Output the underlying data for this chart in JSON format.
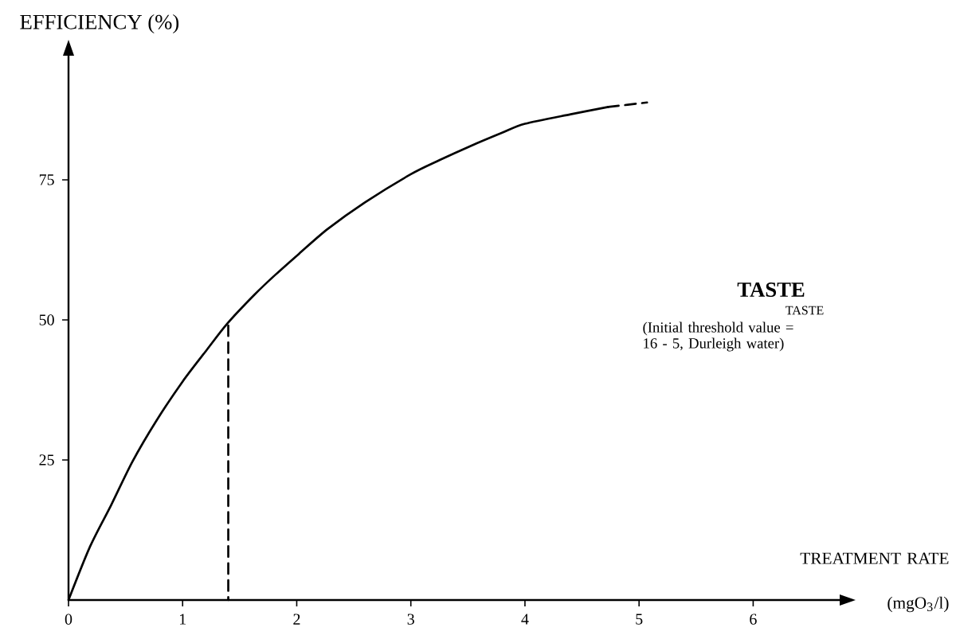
{
  "chart_data": {
    "type": "line",
    "xlabel": "TREATMENT RATE (mgO$_{3}$/l)",
    "ylabel": "EFFICIENCY (%)",
    "series": [
      {
        "color": "#000000",
        "x": [
          0,
          0.19,
          0.375,
          0.56,
          0.77,
          1.0,
          1.21,
          1.39,
          1.63,
          1.81,
          2.02,
          2.27,
          2.6,
          3.0,
          3.25,
          3.52,
          3.8,
          4.0,
          4.4,
          4.73
        ],
        "values": [
          0,
          9.6,
          17,
          24.7,
          32,
          39,
          44.6,
          49.3,
          54.5,
          58,
          61.8,
          66.2,
          71,
          76,
          78.5,
          81,
          83.4,
          85,
          86.7,
          88
        ]
      },
      {
        "color": "#000000",
        "x": [
          4.73,
          5.07
        ],
        "values": [
          88,
          88.8
        ],
        "line_style": "dashed"
      },
      {
        "color": "#000000",
        "x": [
          1.4,
          1.4
        ],
        "values": [
          49,
          0
        ],
        "line_style": "dashed"
      }
    ],
    "xlim": [
      0,
      6.8
    ],
    "ylim": [
      0,
      98
    ],
    "xticks": [
      0,
      1,
      2,
      3,
      4,
      5,
      6
    ],
    "yticks": [
      25,
      50,
      75
    ],
    "marker": "none",
    "annotations": [
      "TASTE",
      "TASTE",
      "(Initial threshold value = 16 - 5, Durleigh water)"
    ]
  }
}
